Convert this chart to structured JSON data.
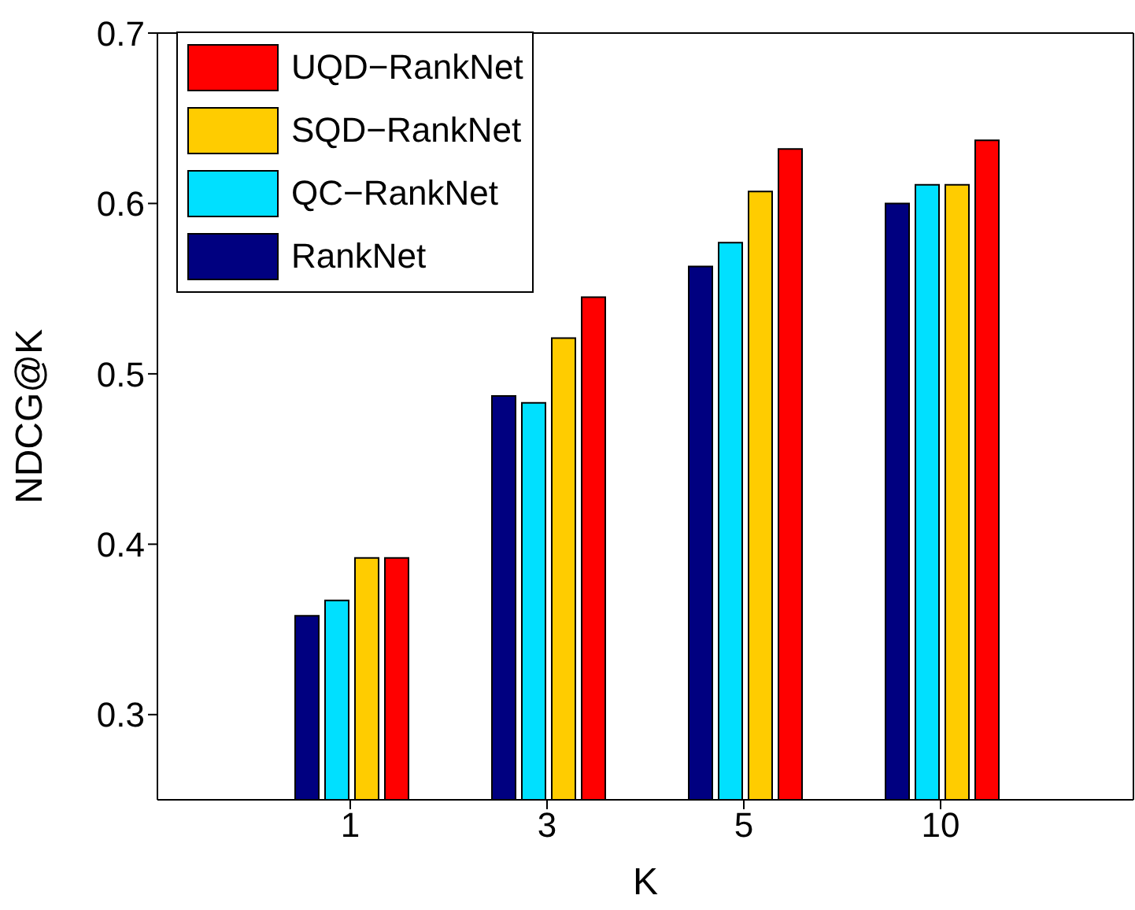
{
  "chart_data": {
    "type": "bar",
    "xlabel": "K",
    "ylabel": "NDCG@K",
    "categories": [
      "1",
      "3",
      "5",
      "10"
    ],
    "series": [
      {
        "name": "RankNet",
        "color": "#000080",
        "values": [
          0.358,
          0.487,
          0.563,
          0.6
        ]
      },
      {
        "name": "QC−RankNet",
        "color": "#00e0ff",
        "values": [
          0.367,
          0.483,
          0.577,
          0.611
        ]
      },
      {
        "name": "SQD−RankNet",
        "color": "#ffcc00",
        "values": [
          0.392,
          0.521,
          0.607,
          0.611
        ]
      },
      {
        "name": "UQD−RankNet",
        "color": "#ff0000",
        "values": [
          0.392,
          0.545,
          0.632,
          0.637
        ]
      }
    ],
    "ylim": [
      0.25,
      0.7
    ],
    "yticks": [
      0.3,
      0.4,
      0.5,
      0.6,
      0.7
    ],
    "grid": false,
    "legend": "top left"
  }
}
